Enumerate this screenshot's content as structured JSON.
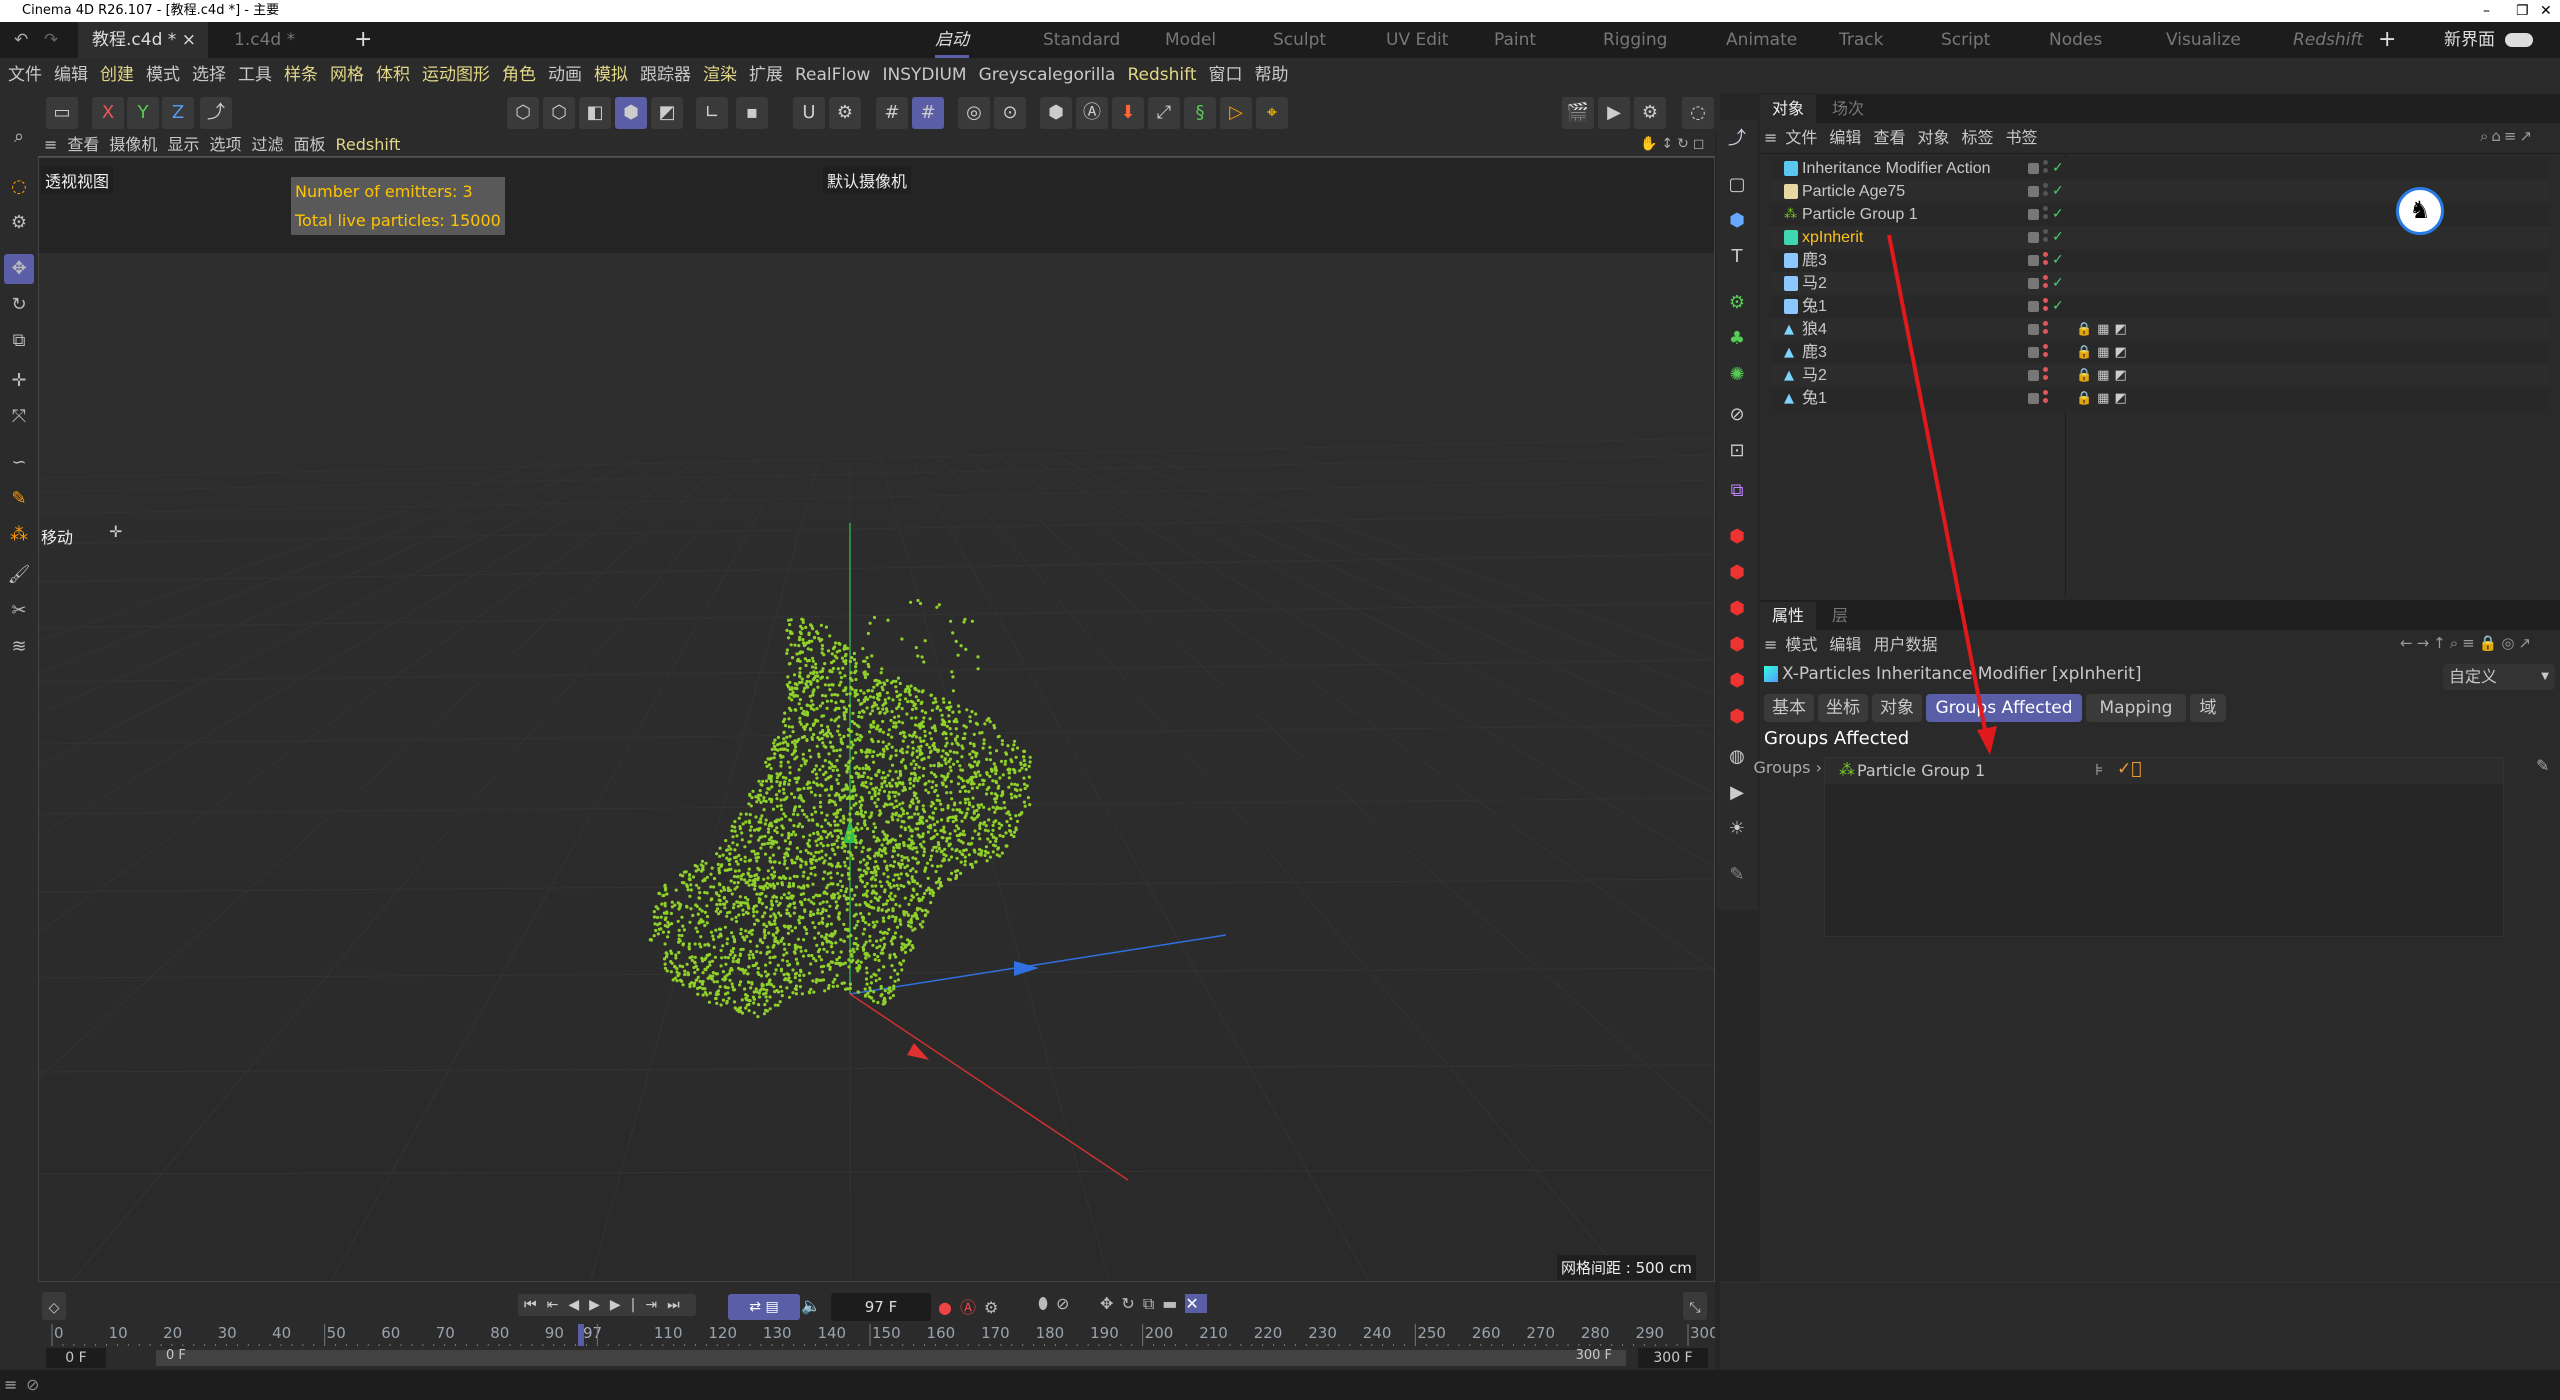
{
  "window": {
    "title": "Cinema 4D R26.107 - [教程.c4d *] - 主要",
    "minimize": "–",
    "restore": "❐",
    "close": "✕"
  },
  "tabs": {
    "undo": "↶",
    "redo": "↷",
    "docs": [
      {
        "label": "教程.c4d *",
        "close": "×",
        "active": true
      },
      {
        "label": "1.c4d *"
      }
    ],
    "add": "+"
  },
  "layouts": [
    "启动",
    "Standard",
    "Model",
    "Sculpt",
    "UV Edit",
    "Paint",
    "Rigging",
    "Animate",
    "Track",
    "Script",
    "Nodes",
    "Visualize",
    "Redshift"
  ],
  "layout_add": "+",
  "new_ui": "新界面",
  "menu": [
    "文件",
    "编辑",
    "创建",
    "模式",
    "选择",
    "工具",
    "样条",
    "网格",
    "体积",
    "运动图形",
    "角色",
    "动画",
    "模拟",
    "跟踪器",
    "渲染",
    "扩展",
    "RealFlow",
    "INSYDIUM",
    "Greyscalegorilla",
    "Redshift",
    "窗口",
    "帮助"
  ],
  "menu_highlight": [
    2,
    6,
    7,
    8,
    9,
    10,
    12,
    14,
    19
  ],
  "toolbar": {
    "axis_x": "X",
    "axis_y": "Y",
    "axis_z": "Z"
  },
  "viewport": {
    "menu": [
      "查看",
      "摄像机",
      "显示",
      "选项",
      "过滤",
      "面板",
      "Redshift"
    ],
    "name": "透视视图",
    "camera": "默认摄像机",
    "hud": {
      "emitters": "Number of emitters: 3",
      "particles": "Total live particles: 15000"
    },
    "tool": "移动",
    "grid": "网格间距 : 500 cm",
    "particle_color": "#8fd12a"
  },
  "objects": {
    "tabs": [
      "对象",
      "场次"
    ],
    "menu": [
      "文件",
      "编辑",
      "查看",
      "对象",
      "标签",
      "书签"
    ],
    "rows": [
      {
        "name": "Inheritance Modifier Action",
        "icon": "action-icon",
        "check": "✓"
      },
      {
        "name": "Particle Age75",
        "icon": "age-icon",
        "check": "✓"
      },
      {
        "name": "Particle Group 1",
        "icon": "particle-group-icon",
        "check": "✓"
      },
      {
        "name": "xpInherit",
        "icon": "modifier-icon",
        "check": "✓",
        "selected": true
      },
      {
        "name": "鹿3",
        "icon": "emitter-icon",
        "check": "✓"
      },
      {
        "name": "马2",
        "icon": "emitter-icon",
        "check": "✓"
      },
      {
        "name": "兔1",
        "icon": "emitter-icon",
        "check": "✓"
      },
      {
        "name": "狼4",
        "icon": "mesh-icon",
        "tags": "🔒▦◩"
      },
      {
        "name": "鹿3",
        "icon": "mesh-icon",
        "tags": "🔒▦◩"
      },
      {
        "name": "马2",
        "icon": "mesh-icon",
        "tags": "🔒▦◩"
      },
      {
        "name": "兔1",
        "icon": "mesh-icon",
        "tags": "🔒▦◩"
      }
    ]
  },
  "attributes": {
    "tabs": [
      "属性",
      "层"
    ],
    "menu": [
      "模式",
      "编辑",
      "用户数据"
    ],
    "object_title": "X-Particles Inheritance Modifier [xpInherit]",
    "preset": "自定义",
    "pages": [
      "基本",
      "坐标",
      "对象",
      "Groups Affected",
      "Mapping",
      "域"
    ],
    "active_page": "Groups Affected",
    "section": "Groups Affected",
    "groups_label": "Groups ›",
    "group_item": "Particle Group 1"
  },
  "timeline": {
    "current_frame": "97 F",
    "start": "0 F",
    "range_start": "0 F",
    "range_end": "300 F",
    "end": "300 F",
    "ticks": [
      0,
      10,
      20,
      30,
      40,
      50,
      60,
      70,
      80,
      90,
      97,
      110,
      120,
      130,
      140,
      150,
      160,
      170,
      180,
      190,
      200,
      210,
      220,
      230,
      240,
      250,
      260,
      270,
      280,
      290,
      300
    ],
    "current": 97,
    "max": 300
  },
  "colors": {
    "accent": "#5a5ea6",
    "annotation_arrow": "#e0191c",
    "hud_text": "#ffc400",
    "selected_object": "#ffc21a"
  }
}
